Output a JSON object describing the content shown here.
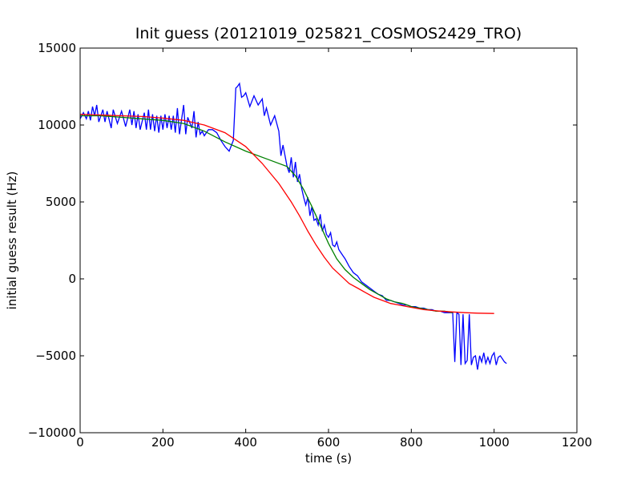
{
  "chart_data": {
    "type": "line",
    "title": "Init guess (20121019_025821_COSMOS2429_TRO)",
    "xlabel": "time (s)",
    "ylabel": "initial guess result (Hz)",
    "xlim": [
      0,
      1200
    ],
    "ylim": [
      -10000,
      15000
    ],
    "xticks": [
      0,
      200,
      400,
      600,
      800,
      1000,
      1200
    ],
    "yticks": [
      -10000,
      -5000,
      0,
      5000,
      10000,
      15000
    ],
    "xtick_labels": [
      "0",
      "200",
      "400",
      "600",
      "800",
      "1000",
      "1200"
    ],
    "ytick_labels": [
      "−10000",
      "−5000",
      "0",
      "5000",
      "10000",
      "15000"
    ],
    "grid": false,
    "series": [
      {
        "color": "#0000ff",
        "x": [
          0,
          8,
          15,
          20,
          25,
          30,
          35,
          40,
          45,
          55,
          60,
          65,
          75,
          80,
          90,
          100,
          110,
          120,
          125,
          130,
          135,
          140,
          145,
          155,
          160,
          165,
          170,
          175,
          180,
          185,
          190,
          195,
          200,
          205,
          210,
          215,
          220,
          225,
          230,
          235,
          240,
          250,
          255,
          260,
          270,
          275,
          280,
          285,
          290,
          295,
          300,
          310,
          320,
          330,
          340,
          350,
          360,
          370,
          376,
          380,
          385,
          390,
          395,
          400,
          410,
          420,
          430,
          440,
          445,
          450,
          460,
          470,
          480,
          485,
          490,
          500,
          505,
          510,
          515,
          520,
          525,
          530,
          535,
          540,
          545,
          550,
          555,
          560,
          565,
          570,
          575,
          580,
          585,
          590,
          595,
          600,
          605,
          610,
          615,
          620,
          625,
          630,
          635,
          640,
          650,
          660,
          670,
          680,
          690,
          700,
          710,
          720,
          730,
          740,
          750,
          760,
          770,
          780,
          790,
          800,
          810,
          820,
          830,
          840,
          850,
          860,
          870,
          880,
          890,
          900,
          905,
          910,
          915,
          920,
          925,
          930,
          935,
          940,
          945,
          950,
          955,
          960,
          965,
          970,
          975,
          980,
          985,
          990,
          995,
          1000,
          1005,
          1010,
          1015,
          1020,
          1025,
          1030
        ],
        "y": [
          10400,
          10800,
          10400,
          10900,
          10300,
          11200,
          10600,
          11300,
          10200,
          11000,
          10200,
          10900,
          9800,
          11000,
          10100,
          10900,
          9900,
          11000,
          10000,
          10900,
          9800,
          10700,
          9700,
          10800,
          9700,
          11000,
          9700,
          10700,
          9600,
          10600,
          9500,
          10600,
          9700,
          10700,
          9800,
          10600,
          9700,
          10600,
          9500,
          11100,
          9400,
          11300,
          9400,
          10500,
          9800,
          10900,
          9200,
          10200,
          9400,
          9600,
          9300,
          9700,
          9700,
          9500,
          9000,
          8600,
          8300,
          9000,
          12400,
          12500,
          12700,
          11800,
          11900,
          12100,
          11200,
          11900,
          11300,
          11700,
          10600,
          11100,
          10000,
          10600,
          9600,
          8000,
          8700,
          7300,
          6900,
          7900,
          6600,
          7600,
          6300,
          6800,
          5900,
          5300,
          4800,
          5300,
          4100,
          4700,
          3800,
          3900,
          3500,
          4200,
          3100,
          3500,
          2900,
          2700,
          3000,
          2200,
          2100,
          2400,
          1900,
          1700,
          1500,
          1300,
          800,
          400,
          200,
          -200,
          -400,
          -600,
          -800,
          -1000,
          -1100,
          -1400,
          -1400,
          -1500,
          -1600,
          -1700,
          -1700,
          -1800,
          -1800,
          -1900,
          -1900,
          -2000,
          -2000,
          -2100,
          -2100,
          -2200,
          -2200,
          -2200,
          -5400,
          -2200,
          -2300,
          -5600,
          -2300,
          -5500,
          -5300,
          -2300,
          -5600,
          -5100,
          -5000,
          -5900,
          -5000,
          -5400,
          -4800,
          -5500,
          -5100,
          -5500,
          -5000,
          -4800,
          -5600,
          -5100,
          -5000,
          -5200,
          -5400,
          -5500
        ]
      },
      {
        "color": "#008000",
        "x": [
          0,
          50,
          100,
          150,
          200,
          250,
          300,
          350,
          400,
          450,
          500,
          520,
          540,
          560,
          580,
          600,
          620,
          640,
          660,
          680,
          700,
          720,
          740,
          760,
          780,
          800,
          820,
          840,
          860,
          880,
          900
        ],
        "y": [
          10600,
          10600,
          10500,
          10400,
          10300,
          10100,
          9600,
          8900,
          8300,
          7800,
          7300,
          6700,
          5800,
          4700,
          3500,
          2300,
          1300,
          600,
          100,
          -300,
          -700,
          -1000,
          -1300,
          -1500,
          -1600,
          -1800,
          -1900,
          -2000,
          -2100,
          -2100,
          -2200
        ]
      },
      {
        "color": "#ff0000",
        "x": [
          0,
          50,
          100,
          150,
          200,
          250,
          300,
          350,
          400,
          440,
          480,
          510,
          530,
          550,
          570,
          590,
          610,
          630,
          650,
          670,
          690,
          710,
          730,
          750,
          770,
          790,
          810,
          830,
          850,
          870,
          900,
          930,
          960,
          1000
        ],
        "y": [
          10700,
          10650,
          10600,
          10550,
          10450,
          10300,
          10000,
          9500,
          8600,
          7500,
          6200,
          5000,
          4100,
          3100,
          2200,
          1400,
          700,
          200,
          -300,
          -600,
          -900,
          -1200,
          -1400,
          -1600,
          -1700,
          -1800,
          -1900,
          -2000,
          -2050,
          -2100,
          -2150,
          -2200,
          -2230,
          -2250
        ]
      }
    ]
  }
}
